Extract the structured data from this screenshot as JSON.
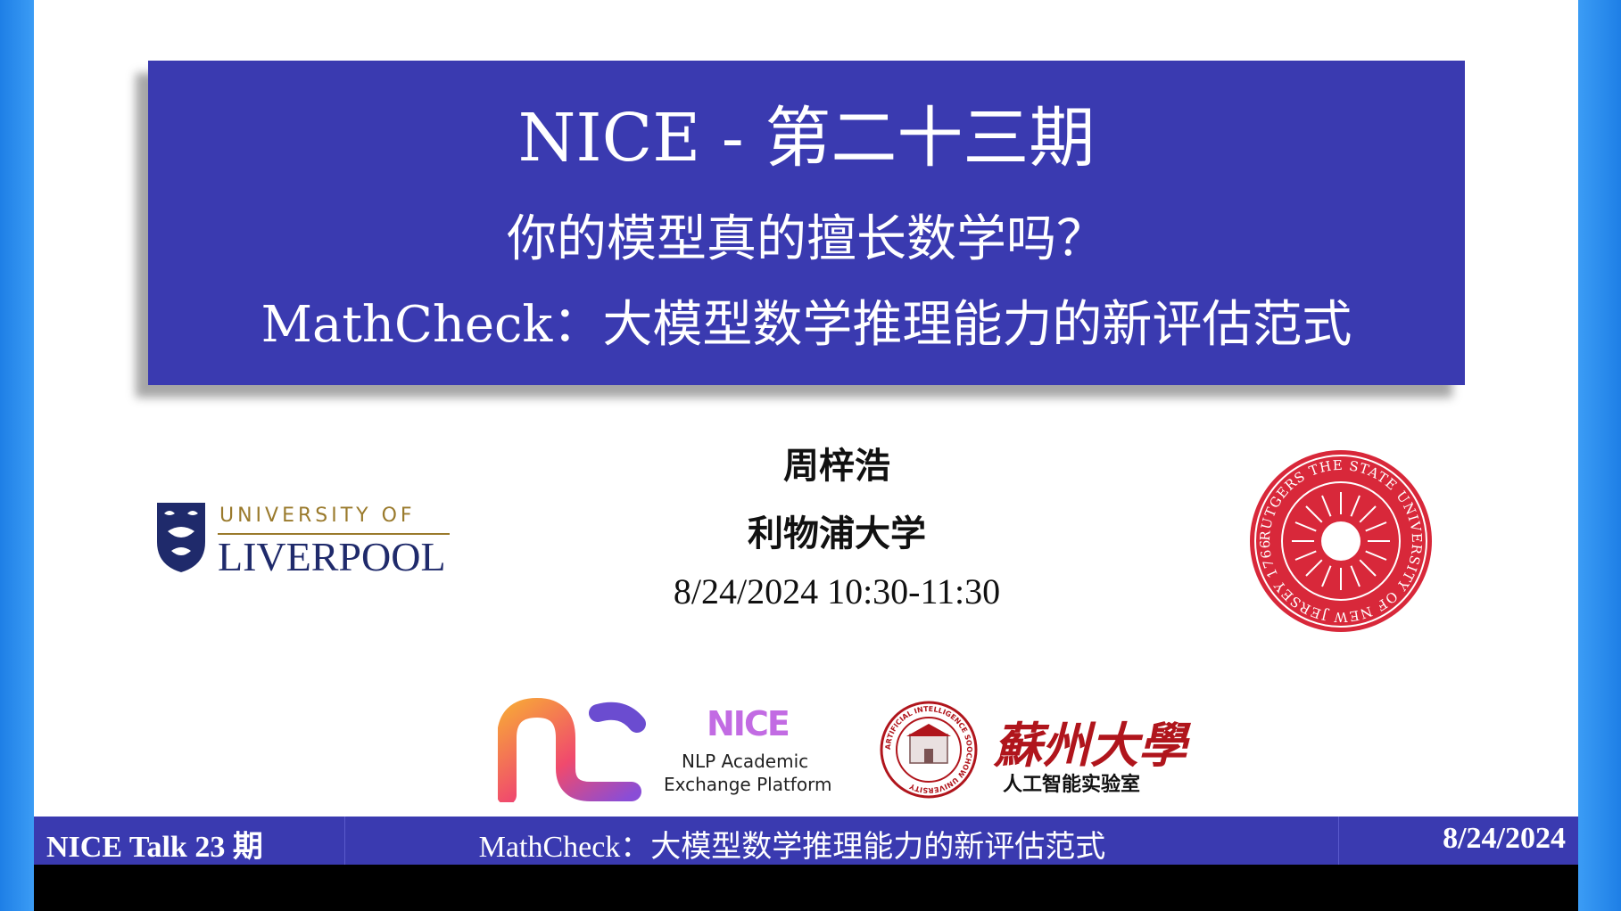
{
  "slide": {
    "title_line1": "NICE - 第二十三期",
    "title_line2": "你的模型真的擅长数学吗？",
    "title_line3": "MathCheck：大模型数学推理能力的新评估范式",
    "speaker_name": "周梓浩",
    "speaker_affiliation": "利物浦大学",
    "datetime": "8/24/2024 10:30-11:30"
  },
  "logos": {
    "liverpool_top": "UNIVERSITY OF",
    "liverpool_main": "LIVERPOOL",
    "rutgers_seal": "RUTGERS THE STATE UNIVERSITY OF NEW JERSEY 1766",
    "nice_badge": "NICE",
    "nice_line1": "NLP Academic",
    "nice_line2": "Exchange Platform",
    "soochow_calligraphy": "蘇州大學",
    "soochow_lab": "人工智能实验室",
    "ai_seal": "ARTIFICIAL INTELLIGENCE SOOCHOW UNIVERSITY"
  },
  "footer": {
    "left": "NICE Talk 23 期",
    "center": "MathCheck：大模型数学推理能力的新评估范式",
    "right": "8/24/2024"
  },
  "colors": {
    "title_bg": "#3a3ab0",
    "frame": "#2a8ff0",
    "liverpool_gold": "#9a7a2c",
    "liverpool_navy": "#1f2a6b",
    "rutgers_red": "#d8283a",
    "nice_purple": "#c26be3",
    "soochow_red": "#b0151c"
  }
}
